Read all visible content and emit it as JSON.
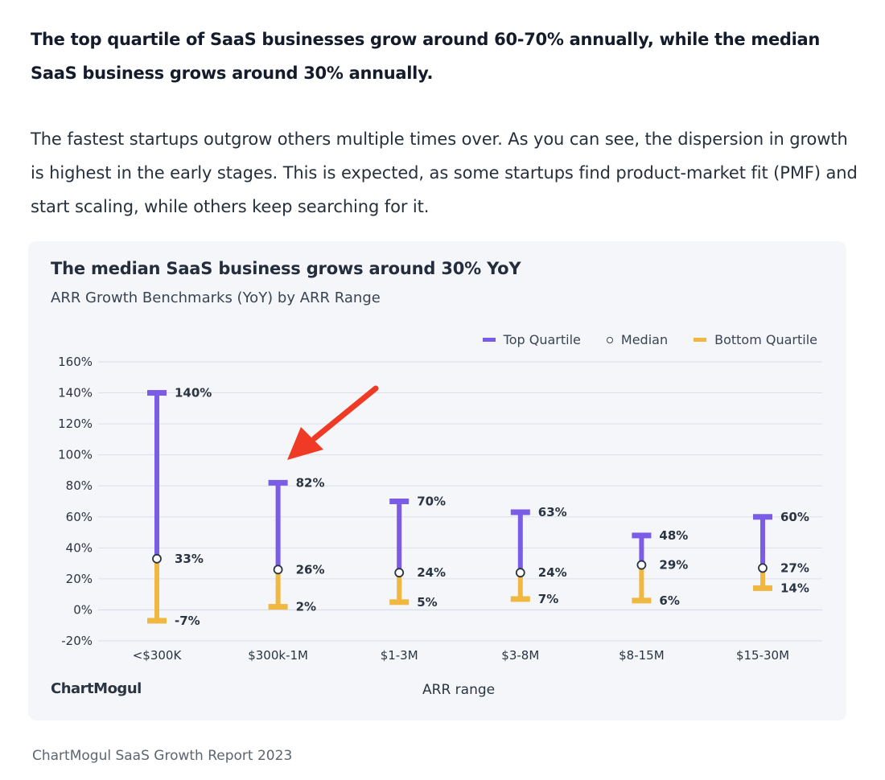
{
  "article": {
    "bold_paragraph": "The top quartile of SaaS businesses grow around 60-70% annually, while the median SaaS business grows around 30% annually.",
    "body_paragraph": "The fastest startups outgrow others multiple times over. As you can see, the dispersion in growth is highest in the early stages. This is expected, as some startups find product-market fit (PMF) and start scaling, while others keep searching for it."
  },
  "chart_data": {
    "type": "range",
    "title": "The median SaaS business grows around 30% YoY",
    "subtitle": "ARR Growth Benchmarks (YoY) by ARR Range",
    "xlabel": "ARR range",
    "ylabel": "",
    "ylim": [
      -20,
      160
    ],
    "yticks": [
      -20,
      0,
      20,
      40,
      60,
      80,
      100,
      120,
      140,
      160
    ],
    "ytick_labels": [
      "-20%",
      "0%",
      "20%",
      "40%",
      "60%",
      "80%",
      "100%",
      "120%",
      "140%",
      "160%"
    ],
    "grid": true,
    "legend_position": "top-right",
    "categories": [
      "<$300K",
      "$300k-1M",
      "$1-3M",
      "$3-8M",
      "$8-15M",
      "$15-30M"
    ],
    "series": [
      {
        "name": "Top Quartile",
        "values": [
          140,
          82,
          70,
          63,
          48,
          60
        ],
        "labels": [
          "140%",
          "82%",
          "70%",
          "63%",
          "48%",
          "60%"
        ]
      },
      {
        "name": "Median",
        "values": [
          33,
          26,
          24,
          24,
          29,
          27
        ],
        "labels": [
          "33%",
          "26%",
          "24%",
          "24%",
          "29%",
          "27%"
        ]
      },
      {
        "name": "Bottom Quartile",
        "values": [
          -7,
          2,
          5,
          7,
          6,
          14
        ],
        "labels": [
          "-7%",
          "2%",
          "5%",
          "7%",
          "6%",
          "14%"
        ]
      }
    ],
    "annotation": "red arrow pointing at the $300k-1M top quartile value"
  },
  "brand": "ChartMogul",
  "caption": "ChartMogul SaaS Growth Report 2023",
  "colors": {
    "top_quartile": "#7a5ce6",
    "bottom_quartile": "#f0b840",
    "median_stroke": "#2b3441",
    "arrow": "#ef3b26",
    "grid": "#dcdfe6",
    "card_bg": "#f5f6fa"
  }
}
